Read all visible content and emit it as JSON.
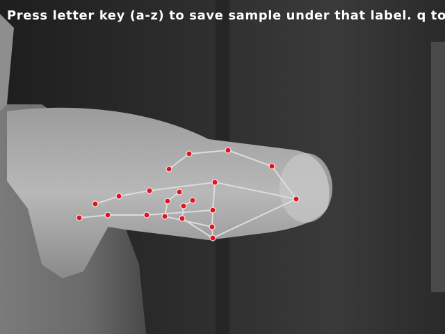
{
  "overlay": {
    "instruction": "Press letter key (a-z) to save sample under that label. q to quit"
  },
  "colors": {
    "landmark": "#e0141e",
    "landmark_outline": "#ffffff",
    "connection": "#dcdcdc",
    "text": "#ffffff"
  },
  "hand": {
    "landmark_count": 21
  }
}
